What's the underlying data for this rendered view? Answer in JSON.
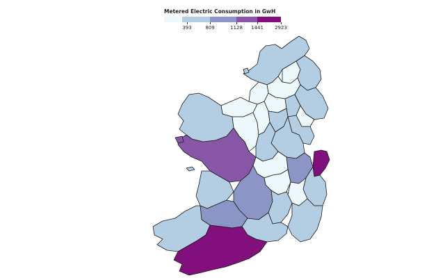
{
  "legend": {
    "title": "Metered Electric Consumption in GwH",
    "breaks": [
      "393",
      "809",
      "1128",
      "1441",
      "2923"
    ],
    "colors": [
      "#edf8fb",
      "#b3cde3",
      "#8c96c6",
      "#8856a7",
      "#810f7c"
    ]
  },
  "map": {
    "kind": "choropleth",
    "region": "Ireland counties",
    "legend_position": "top-center"
  }
}
